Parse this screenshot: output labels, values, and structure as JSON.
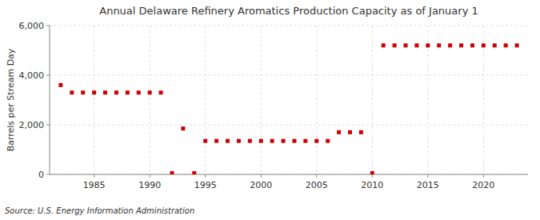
{
  "chart_data": {
    "type": "scatter",
    "title": "Annual Delaware Refinery Aromatics Production Capacity as of January 1",
    "ylabel": "Barrels per Stream Day",
    "annotations": [
      "Source: U.S. Energy Information Administration"
    ],
    "color": "#cc0000",
    "marker": "square",
    "grid": true,
    "x": [
      1982,
      1983,
      1984,
      1985,
      1986,
      1987,
      1988,
      1989,
      1990,
      1991,
      1992,
      1993,
      1994,
      1995,
      1996,
      1997,
      1998,
      1999,
      2000,
      2001,
      2002,
      2003,
      2004,
      2005,
      2006,
      2007,
      2008,
      2009,
      2010,
      2011,
      2012,
      2013,
      2014,
      2015,
      2016,
      2017,
      2018,
      2019,
      2020,
      2021,
      2022,
      2023
    ],
    "values": [
      3600,
      3300,
      3300,
      3300,
      3300,
      3300,
      3300,
      3300,
      3300,
      3300,
      50,
      1850,
      50,
      1350,
      1350,
      1350,
      1350,
      1350,
      1350,
      1350,
      1350,
      1350,
      1350,
      1350,
      1350,
      1700,
      1700,
      1700,
      50,
      5200,
      5200,
      5200,
      5200,
      5200,
      5200,
      5200,
      5200,
      5200,
      5200,
      5200,
      5200,
      5200
    ],
    "xlim": [
      1981,
      2024
    ],
    "xticks": [
      1985,
      1990,
      1995,
      2000,
      2005,
      2010,
      2015,
      2020
    ],
    "ylim": [
      0,
      6000
    ],
    "yticks": [
      0,
      {
        "value": 2000,
        "label": "2,000"
      },
      {
        "value": 4000,
        "label": "4,000"
      },
      {
        "value": 6000,
        "label": "6,000"
      }
    ]
  }
}
